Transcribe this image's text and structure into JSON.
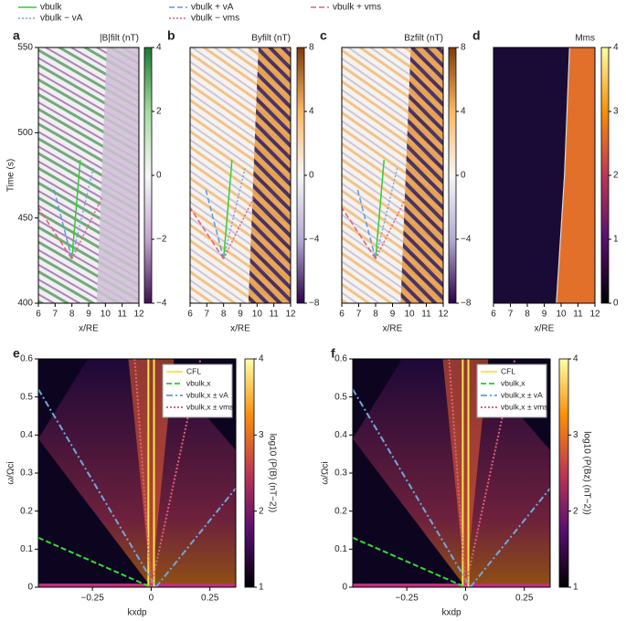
{
  "chart_data": [
    {
      "type": "heatmap",
      "label": "a",
      "colorbar_label": "|B|filt (nT)",
      "xlabel": "x/RE",
      "ylabel": "Time (s)",
      "xlim": [
        6,
        12
      ],
      "xticks": [
        6,
        7,
        8,
        9,
        10,
        11,
        12
      ],
      "ylim": [
        400,
        550
      ],
      "yticks": [
        400,
        450,
        500,
        550
      ],
      "clim": [
        -4,
        4
      ],
      "cticks": [
        {
          "value": -4,
          "label": "−4"
        },
        {
          "value": -2,
          "label": "−2"
        },
        0,
        2,
        4
      ],
      "colormap": [
        "#3f1052",
        "#c2a5cf",
        "#f7f7f7",
        "#a6dba0",
        "#1b7837"
      ],
      "series": [
        {
          "name": "vbulk",
          "color": "#33cc33",
          "dash": "solid",
          "x": [
            8,
            8.5
          ],
          "values": [
            426,
            484
          ]
        },
        {
          "name": "vbulk − vA",
          "color": "#7aa6e0",
          "dash": "dotted",
          "x": [
            8,
            9.3
          ],
          "values": [
            426,
            480
          ]
        },
        {
          "name": "vbulk + vA",
          "color": "#5b9be0",
          "dash": "dashed",
          "x": [
            8,
            6.9
          ],
          "values": [
            426,
            468
          ]
        },
        {
          "name": "vbulk − vms",
          "color": "#e0607a",
          "dash": "dotted",
          "x": [
            8,
            9.8
          ],
          "values": [
            426,
            462
          ]
        },
        {
          "name": "vbulk + vms",
          "color": "#e0607a",
          "dash": "dashed",
          "x": [
            8,
            6
          ],
          "values": [
            426,
            456
          ]
        }
      ]
    },
    {
      "type": "heatmap",
      "label": "b",
      "colorbar_label": "Byfilt (nT)",
      "xlabel": "x/RE",
      "xlim": [
        6,
        12
      ],
      "xticks": [
        6,
        7,
        8,
        9,
        10,
        11,
        12
      ],
      "ylim": [
        400,
        550
      ],
      "clim": [
        -8,
        8
      ],
      "cticks": [
        {
          "value": -8,
          "label": "−8"
        },
        {
          "value": -4,
          "label": "−4"
        },
        0,
        4,
        8
      ],
      "colormap": [
        "#2d004b",
        "#b2abd2",
        "#f7f7f7",
        "#fdb863",
        "#7f3b08"
      ],
      "series": [
        {
          "color": "#33cc33",
          "dash": "solid",
          "x": [
            8,
            8.5
          ],
          "values": [
            426,
            484
          ]
        },
        {
          "color": "#7aa6e0",
          "dash": "dotted",
          "x": [
            8,
            9.3
          ],
          "values": [
            426,
            480
          ]
        },
        {
          "color": "#5b9be0",
          "dash": "dashed",
          "x": [
            8,
            6.9
          ],
          "values": [
            426,
            468
          ]
        },
        {
          "color": "#e0607a",
          "dash": "dotted",
          "x": [
            8,
            9.8
          ],
          "values": [
            426,
            462
          ]
        },
        {
          "color": "#e0607a",
          "dash": "dashed",
          "x": [
            8,
            6
          ],
          "values": [
            426,
            456
          ]
        }
      ]
    },
    {
      "type": "heatmap",
      "label": "c",
      "colorbar_label": "Bzfilt (nT)",
      "xlabel": "x/RE",
      "xlim": [
        6,
        12
      ],
      "xticks": [
        6,
        7,
        8,
        9,
        10,
        11,
        12
      ],
      "ylim": [
        400,
        550
      ],
      "clim": [
        -8,
        8
      ],
      "cticks": [
        {
          "value": -8,
          "label": "−8"
        },
        {
          "value": -4,
          "label": "−4"
        },
        0,
        4,
        8
      ],
      "colormap": [
        "#2d004b",
        "#b2abd2",
        "#f7f7f7",
        "#fdb863",
        "#7f3b08"
      ],
      "series": [
        {
          "color": "#33cc33",
          "dash": "solid",
          "x": [
            8,
            8.5
          ],
          "values": [
            426,
            484
          ]
        },
        {
          "color": "#7aa6e0",
          "dash": "dotted",
          "x": [
            8,
            9.3
          ],
          "values": [
            426,
            480
          ]
        },
        {
          "color": "#5b9be0",
          "dash": "dashed",
          "x": [
            8,
            6.9
          ],
          "values": [
            426,
            468
          ]
        },
        {
          "color": "#e0607a",
          "dash": "dotted",
          "x": [
            8,
            9.8
          ],
          "values": [
            426,
            462
          ]
        },
        {
          "color": "#e0607a",
          "dash": "dashed",
          "x": [
            8,
            6
          ],
          "values": [
            426,
            456
          ]
        }
      ]
    },
    {
      "type": "heatmap",
      "label": "d",
      "colorbar_label": "Mms",
      "xlabel": "x/RE",
      "xlim": [
        6,
        12
      ],
      "xticks": [
        6,
        7,
        8,
        9,
        10,
        11,
        12
      ],
      "ylim": [
        400,
        550
      ],
      "clim": [
        0,
        4
      ],
      "cticks": [
        0,
        1,
        2,
        3,
        4
      ],
      "colormap": [
        "#000004",
        "#57106e",
        "#bc3754",
        "#f98e09",
        "#fcffa4"
      ]
    },
    {
      "type": "spectrum",
      "label": "e",
      "colorbar_label": "log10 (P(B) (nT−2))",
      "xlabel": "kxdp",
      "ylabel": "ω/Ωci",
      "xlim": [
        -0.48,
        0.36
      ],
      "xticks": [
        {
          "value": -0.25,
          "label": "−0.25"
        },
        0,
        0.25
      ],
      "ylim": [
        0,
        0.6
      ],
      "yticks": [
        0,
        0.1,
        0.2,
        0.3,
        0.4,
        0.5,
        0.6
      ],
      "clim": [
        1,
        4
      ],
      "cticks": [
        1,
        2,
        3,
        4
      ],
      "legend": "upper right",
      "colormap": [
        "#000004",
        "#57106e",
        "#bc3754",
        "#f98e09",
        "#fcffa4"
      ],
      "series": [
        {
          "name": "CFL",
          "color": "#f5e84a",
          "dash": "solid",
          "x": [
            -0.012,
            -0.012,
            0.012,
            0.012,
            0.012
          ],
          "values": [
            0,
            0.6,
            null,
            0,
            0.6
          ]
        },
        {
          "name": "vbulk,x",
          "color": "#33dd33",
          "dash": "dashed",
          "x": [
            -0.48,
            0
          ],
          "values": [
            0.13,
            0
          ]
        },
        {
          "name": "vbulk,x ± vA",
          "color": "#6fa8e0",
          "dash": "dashdot",
          "x": [
            -0.48,
            0.02,
            0.1,
            0.02,
            0.36
          ],
          "values": [
            0.52,
            0,
            null,
            0,
            0.26
          ]
        },
        {
          "name": "vbulk,x ± vms",
          "color": "#e0607a",
          "dash": "dotted",
          "x": [
            -0.07,
            0,
            0.1,
            0,
            0.21
          ],
          "values": [
            0.6,
            0,
            null,
            0,
            0.6
          ]
        }
      ]
    },
    {
      "type": "spectrum",
      "label": "f",
      "colorbar_label": "log10 (P(Bz) (nT−2))",
      "xlabel": "kxdp",
      "ylabel": "ω/Ωci",
      "xlim": [
        -0.48,
        0.36
      ],
      "xticks": [
        {
          "value": -0.25,
          "label": "−0.25"
        },
        0,
        0.25
      ],
      "ylim": [
        0,
        0.6
      ],
      "yticks": [
        0,
        0.1,
        0.2,
        0.3,
        0.4,
        0.5,
        0.6
      ],
      "clim": [
        1,
        4
      ],
      "cticks": [
        1,
        2,
        3,
        4
      ],
      "legend": "upper right",
      "colormap": [
        "#000004",
        "#57106e",
        "#bc3754",
        "#f98e09",
        "#fcffa4"
      ],
      "series": [
        {
          "name": "CFL",
          "color": "#f5e84a",
          "dash": "solid",
          "x": [
            -0.012,
            -0.012,
            0.012,
            0.012,
            0.012
          ],
          "values": [
            0,
            0.6,
            null,
            0,
            0.6
          ]
        },
        {
          "name": "vbulk,x",
          "color": "#33dd33",
          "dash": "dashed",
          "x": [
            -0.48,
            0
          ],
          "values": [
            0.13,
            0
          ]
        },
        {
          "name": "vbulk,x ± vA",
          "color": "#6fa8e0",
          "dash": "dashdot",
          "x": [
            -0.48,
            0.02,
            0.1,
            0.02,
            0.36
          ],
          "values": [
            0.52,
            0,
            null,
            0,
            0.26
          ]
        },
        {
          "name": "vbulk,x ± vms",
          "color": "#e0607a",
          "dash": "dotted",
          "x": [
            -0.07,
            0,
            0.1,
            0,
            0.21
          ],
          "values": [
            0.6,
            0,
            null,
            0,
            0.6
          ]
        }
      ]
    }
  ]
}
